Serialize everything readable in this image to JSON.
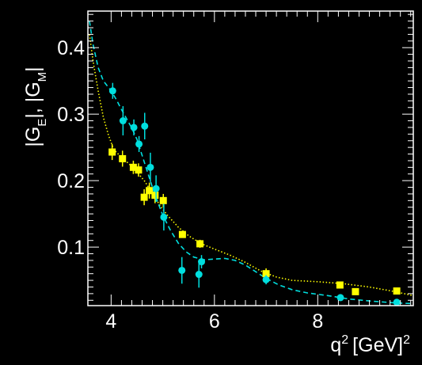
{
  "chart_data": {
    "type": "scatter",
    "xlabel": "q",
    "xlabel_sup1": "2",
    "xlabel_unit": "[GeV]",
    "xlabel_sup2": "2",
    "ylabel_parts": [
      "|G",
      "E",
      "|, |G",
      "M",
      "|"
    ],
    "xlim": [
      3.55,
      9.85
    ],
    "ylim": [
      0.012,
      0.455
    ],
    "x_ticks": [
      4,
      6,
      8
    ],
    "x_tick_labels": [
      "4",
      "6",
      "8"
    ],
    "y_ticks": [
      0.1,
      0.2,
      0.3,
      0.4
    ],
    "y_tick_labels": [
      "0.1",
      "0.2",
      "0.3",
      "0.4"
    ],
    "background": "#000000",
    "series": [
      {
        "marker": "square",
        "color": "#ffff00",
        "points": [
          {
            "x": 4.02,
            "y": 0.243,
            "err": 0.012
          },
          {
            "x": 4.22,
            "y": 0.233,
            "err": 0.012
          },
          {
            "x": 4.43,
            "y": 0.22,
            "err": 0.01
          },
          {
            "x": 4.53,
            "y": 0.216,
            "err": 0.01
          },
          {
            "x": 4.64,
            "y": 0.175,
            "err": 0.012
          },
          {
            "x": 4.74,
            "y": 0.185,
            "err": 0.012
          },
          {
            "x": 4.85,
            "y": 0.178,
            "err": 0.012
          },
          {
            "x": 5.01,
            "y": 0.17,
            "err": 0.01
          },
          {
            "x": 5.38,
            "y": 0.119,
            "err": 0.005
          },
          {
            "x": 5.72,
            "y": 0.105,
            "err": 0.006
          },
          {
            "x": 7.0,
            "y": 0.06,
            "err": 0.008
          },
          {
            "x": 8.43,
            "y": 0.043,
            "err": 0.005
          },
          {
            "x": 8.73,
            "y": 0.033,
            "err": 0.005
          },
          {
            "x": 9.53,
            "y": 0.034,
            "err": 0.005
          }
        ]
      },
      {
        "marker": "circle",
        "color": "#00dede",
        "points": [
          {
            "x": 4.03,
            "y": 0.335,
            "err": 0.012
          },
          {
            "x": 4.23,
            "y": 0.29,
            "err": 0.022
          },
          {
            "x": 4.44,
            "y": 0.28,
            "err": 0.012
          },
          {
            "x": 4.54,
            "y": 0.255,
            "err": 0.012
          },
          {
            "x": 4.65,
            "y": 0.282,
            "err": 0.02
          },
          {
            "x": 4.76,
            "y": 0.22,
            "err": 0.022
          },
          {
            "x": 4.87,
            "y": 0.188,
            "err": 0.02
          },
          {
            "x": 5.02,
            "y": 0.145,
            "err": 0.02
          },
          {
            "x": 5.37,
            "y": 0.065,
            "err": 0.02
          },
          {
            "x": 5.7,
            "y": 0.059,
            "err": 0.02
          },
          {
            "x": 5.75,
            "y": 0.078,
            "err": 0.01
          },
          {
            "x": 7.0,
            "y": 0.051,
            "err": 0.007
          },
          {
            "x": 8.44,
            "y": 0.024,
            "err": 0.005
          },
          {
            "x": 9.53,
            "y": 0.017,
            "err": 0.005
          }
        ]
      }
    ],
    "curves": [
      {
        "style": "dotted",
        "color": "#ffff00",
        "points": [
          [
            3.58,
            0.42
          ],
          [
            3.65,
            0.38
          ],
          [
            3.75,
            0.335
          ],
          [
            3.85,
            0.295
          ],
          [
            3.95,
            0.268
          ],
          [
            4.05,
            0.247
          ],
          [
            4.2,
            0.235
          ],
          [
            4.35,
            0.225
          ],
          [
            4.5,
            0.213
          ],
          [
            4.65,
            0.199
          ],
          [
            4.8,
            0.181
          ],
          [
            4.95,
            0.162
          ],
          [
            5.1,
            0.147
          ],
          [
            5.3,
            0.13
          ],
          [
            5.5,
            0.117
          ],
          [
            5.75,
            0.105
          ],
          [
            6.0,
            0.097
          ],
          [
            6.3,
            0.088
          ],
          [
            6.6,
            0.077
          ],
          [
            6.9,
            0.064
          ],
          [
            7.2,
            0.055
          ],
          [
            7.5,
            0.05
          ],
          [
            8.0,
            0.048
          ],
          [
            8.5,
            0.045
          ],
          [
            9.0,
            0.04
          ],
          [
            9.5,
            0.033
          ],
          [
            9.85,
            0.027
          ]
        ]
      },
      {
        "style": "dashed",
        "color": "#00dede",
        "points": [
          [
            3.58,
            0.44
          ],
          [
            3.65,
            0.405
          ],
          [
            3.75,
            0.37
          ],
          [
            3.85,
            0.35
          ],
          [
            4.0,
            0.335
          ],
          [
            4.1,
            0.322
          ],
          [
            4.2,
            0.307
          ],
          [
            4.3,
            0.293
          ],
          [
            4.4,
            0.279
          ],
          [
            4.5,
            0.262
          ],
          [
            4.6,
            0.238
          ],
          [
            4.7,
            0.214
          ],
          [
            4.8,
            0.19
          ],
          [
            4.9,
            0.168
          ],
          [
            5.0,
            0.148
          ],
          [
            5.15,
            0.125
          ],
          [
            5.3,
            0.106
          ],
          [
            5.45,
            0.093
          ],
          [
            5.6,
            0.085
          ],
          [
            5.8,
            0.081
          ],
          [
            6.0,
            0.082
          ],
          [
            6.2,
            0.083
          ],
          [
            6.4,
            0.08
          ],
          [
            6.6,
            0.073
          ],
          [
            6.8,
            0.063
          ],
          [
            7.0,
            0.053
          ],
          [
            7.25,
            0.043
          ],
          [
            7.5,
            0.036
          ],
          [
            7.8,
            0.031
          ],
          [
            8.2,
            0.027
          ],
          [
            8.6,
            0.022
          ],
          [
            9.0,
            0.019
          ],
          [
            9.5,
            0.016
          ],
          [
            9.85,
            0.015
          ]
        ]
      }
    ]
  }
}
